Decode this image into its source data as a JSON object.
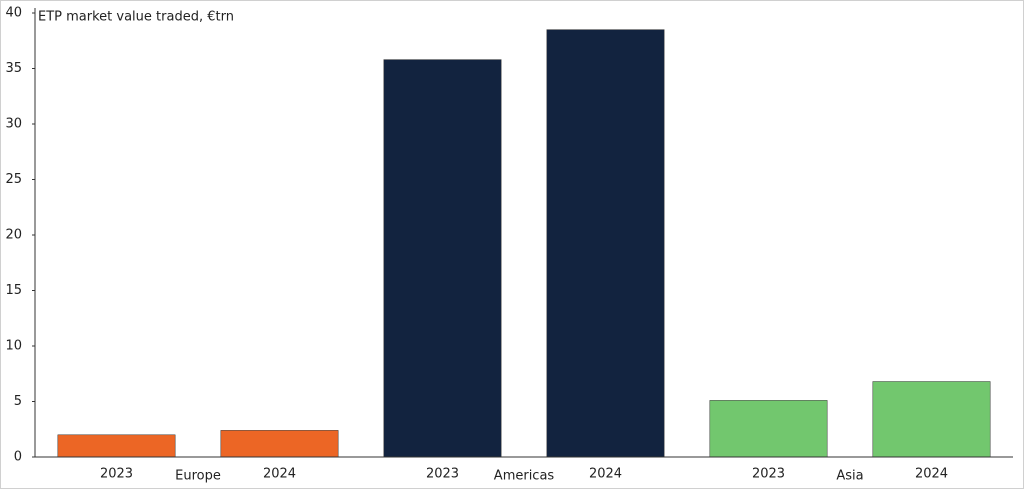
{
  "chart_data": {
    "type": "bar",
    "title": "ETP market value traded, €trn",
    "groups": [
      {
        "name": "Europe",
        "color": "#ec6625",
        "categories": [
          "2023",
          "2024"
        ],
        "values": [
          2.0,
          2.4
        ]
      },
      {
        "name": "Americas",
        "color": "#12233f",
        "categories": [
          "2023",
          "2024"
        ],
        "values": [
          35.8,
          38.5
        ]
      },
      {
        "name": "Asia",
        "color": "#72c76e",
        "categories": [
          "2023",
          "2024"
        ],
        "values": [
          5.1,
          6.8
        ]
      }
    ],
    "ylim": [
      0,
      40
    ],
    "yticks": [
      0,
      5,
      10,
      15,
      20,
      25,
      30,
      35,
      40
    ],
    "grid": false
  }
}
